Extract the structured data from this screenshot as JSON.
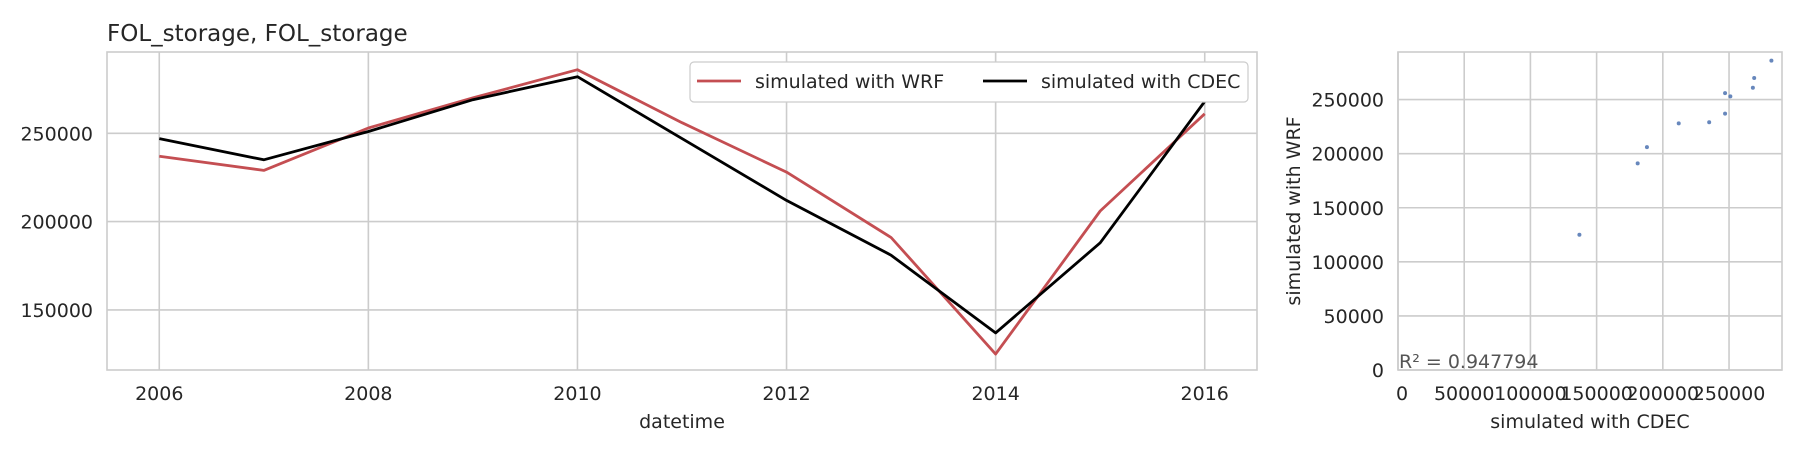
{
  "chart_data": [
    {
      "type": "line",
      "title": "FOL_storage, FOL_storage",
      "xlabel": "datetime",
      "ylabel": "",
      "xlim": [
        2005.5,
        2016.5
      ],
      "ylim": [
        116000,
        296000
      ],
      "xticks": [
        2006,
        2008,
        2010,
        2012,
        2014,
        2016
      ],
      "yticks": [
        150000,
        200000,
        250000
      ],
      "grid": true,
      "legend": "top-right, 2 columns",
      "x": [
        2006,
        2007,
        2008,
        2009,
        2010,
        2011,
        2012,
        2013,
        2014,
        2015,
        2016
      ],
      "series": [
        {
          "name": "simulated with WRF",
          "color": "#c44e52",
          "values": [
            237000,
            229000,
            253000,
            270000,
            286000,
            256000,
            228000,
            191000,
            125000,
            206000,
            261000
          ]
        },
        {
          "name": "simulated with CDEC",
          "color": "#000000",
          "values": [
            247000,
            235000,
            251000,
            269000,
            282000,
            247000,
            212000,
            181000,
            137000,
            188000,
            268000
          ]
        }
      ]
    },
    {
      "type": "scatter",
      "title": "",
      "xlabel": "simulated with CDEC",
      "ylabel": "simulated with WRF",
      "xlim": [
        0,
        290000
      ],
      "ylim": [
        0,
        294000
      ],
      "xticks": [
        0,
        50000,
        100000,
        150000,
        200000,
        250000
      ],
      "xtick_labels": [
        "0",
        "50000",
        "100000",
        "150000",
        "200000",
        "250000"
      ],
      "yticks": [
        0,
        50000,
        100000,
        150000,
        200000,
        250000
      ],
      "grid": true,
      "color": "#4c72b0",
      "annotation": "R² = 0.947794",
      "points": [
        {
          "x": 137000,
          "y": 125000
        },
        {
          "x": 181000,
          "y": 191000
        },
        {
          "x": 188000,
          "y": 206000
        },
        {
          "x": 212000,
          "y": 228000
        },
        {
          "x": 235000,
          "y": 229000
        },
        {
          "x": 247000,
          "y": 237000
        },
        {
          "x": 247000,
          "y": 256000
        },
        {
          "x": 251000,
          "y": 253000
        },
        {
          "x": 268000,
          "y": 261000
        },
        {
          "x": 269000,
          "y": 270000
        },
        {
          "x": 282000,
          "y": 286000
        }
      ]
    }
  ]
}
